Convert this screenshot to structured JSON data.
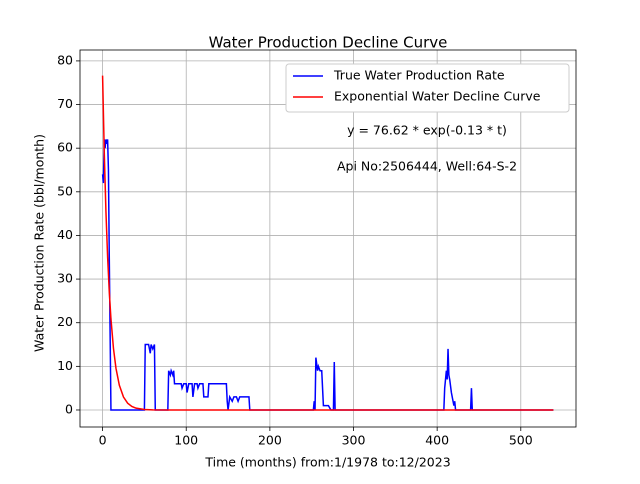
{
  "chart_data": {
    "type": "line",
    "title": "Water Production Decline Curve",
    "xlabel": "Time (months) from:1/1978 to:12/2023",
    "ylabel": "Water Production Rate (bbl/month)",
    "annotations": [
      "y = 76.62 * exp(-0.13 * t)",
      "Api No:2506444, Well:64-S-2"
    ],
    "xlim": [
      -27,
      566
    ],
    "ylim": [
      -3.9,
      82.5
    ],
    "xticks": [
      0,
      100,
      200,
      300,
      400,
      500
    ],
    "yticks": [
      0,
      10,
      20,
      30,
      40,
      50,
      60,
      70,
      80
    ],
    "grid": true,
    "legend": "upper right",
    "series": [
      {
        "name": "True Water Production Rate",
        "color": "#0000ff",
        "x": [
          0,
          1,
          2,
          3,
          4,
          5,
          6,
          7,
          8,
          10,
          50,
          51,
          55,
          57,
          58,
          60,
          62,
          63,
          78,
          79,
          81,
          82,
          84,
          85,
          86,
          94,
          95,
          97,
          100,
          101,
          103,
          107,
          108,
          110,
          113,
          114,
          116,
          120,
          121,
          126,
          127,
          148,
          149,
          150,
          152,
          155,
          157,
          160,
          162,
          164,
          175,
          176,
          252,
          253,
          254,
          255,
          257,
          258,
          260,
          262,
          263,
          264,
          270,
          273,
          276,
          277,
          278,
          408,
          409,
          411,
          412,
          413,
          414,
          415,
          417,
          419,
          420,
          421,
          422,
          440,
          441,
          442,
          539
        ],
        "values": [
          54,
          52,
          62,
          60,
          62,
          61,
          62,
          55,
          35,
          0,
          0,
          15,
          15,
          13,
          15,
          14,
          15,
          0,
          0,
          9,
          8,
          9,
          8,
          9,
          6,
          6,
          5,
          6,
          6,
          4,
          6,
          6,
          3,
          6,
          6,
          5,
          6,
          6,
          3,
          3,
          6,
          6,
          2,
          0,
          3,
          2,
          3,
          3,
          2,
          3,
          3,
          0,
          0,
          2,
          0,
          12,
          9,
          10,
          9,
          9,
          5,
          1,
          1,
          0,
          0,
          11,
          0,
          0,
          5,
          9,
          7,
          14,
          8,
          7,
          4,
          2,
          1,
          2,
          0,
          0,
          5,
          0,
          0
        ]
      },
      {
        "name": "Exponential Water Decline Curve",
        "color": "#ff0000",
        "x": [
          0,
          2,
          4,
          6,
          8,
          10,
          13,
          16,
          20,
          25,
          30,
          35,
          40,
          50,
          60,
          80,
          539
        ],
        "values": [
          76.62,
          59.08,
          45.55,
          35.12,
          27.08,
          20.88,
          14.14,
          9.57,
          5.69,
          2.97,
          1.55,
          0.81,
          0.42,
          0.11,
          0.03,
          0,
          0
        ]
      }
    ]
  }
}
